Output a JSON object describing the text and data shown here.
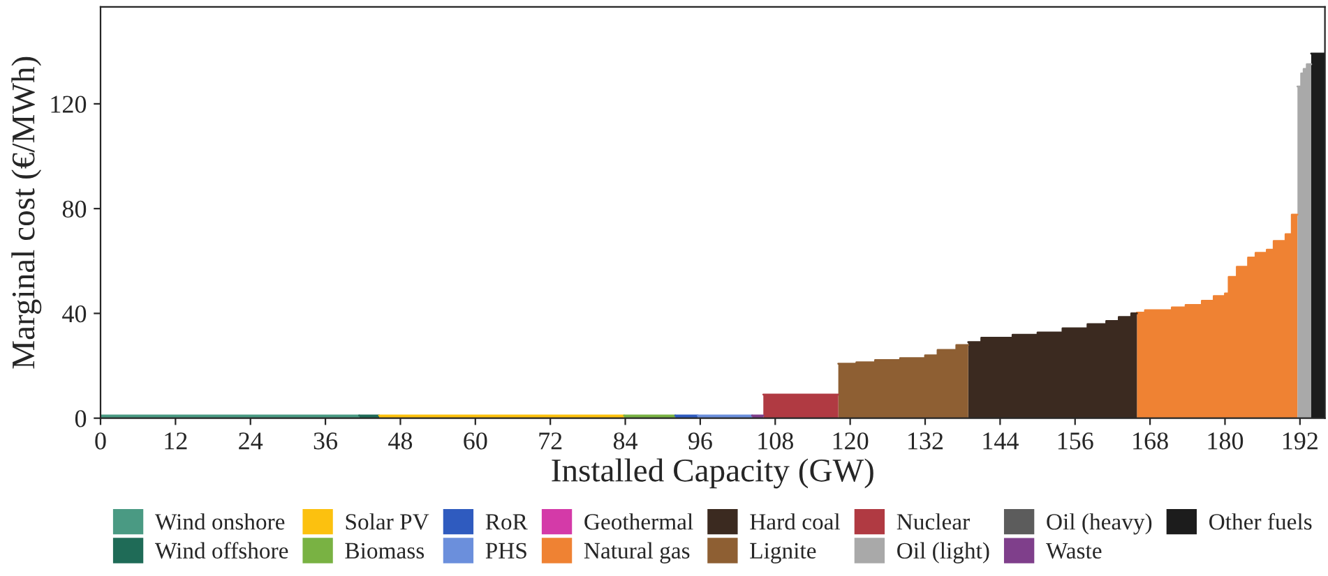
{
  "chart_data": {
    "type": "area",
    "xlabel": "Installed Capacity (GW)",
    "ylabel": "Marginal cost (€/MWh)",
    "xlim": [
      0,
      196
    ],
    "ylim": [
      0,
      157
    ],
    "xticks": [
      0,
      12,
      24,
      36,
      48,
      60,
      72,
      84,
      96,
      108,
      120,
      132,
      144,
      156,
      168,
      180,
      192
    ],
    "yticks": [
      0,
      40,
      80,
      120
    ],
    "grid": false,
    "legend": "bottom",
    "series": [
      {
        "name": "Wind onshore",
        "color": "#4a9a83",
        "x": [
          0,
          41.4
        ],
        "values": [
          1,
          1
        ]
      },
      {
        "name": "Wind offshore",
        "color": "#1f6b57",
        "x": [
          41.4,
          44.6
        ],
        "values": [
          1,
          1
        ]
      },
      {
        "name": "Solar PV",
        "color": "#fcc10f",
        "x": [
          44.6,
          83.8
        ],
        "values": [
          1,
          1
        ]
      },
      {
        "name": "Biomass",
        "color": "#79b243",
        "x": [
          83.8,
          92.0
        ],
        "values": [
          1,
          1
        ]
      },
      {
        "name": "RoR",
        "color": "#2f5bbf",
        "x": [
          92.0,
          95.6
        ],
        "values": [
          1,
          1
        ]
      },
      {
        "name": "PHS",
        "color": "#6b8fdc",
        "x": [
          95.6,
          104.3
        ],
        "values": [
          1,
          1
        ]
      },
      {
        "name": "Geothermal",
        "color": "#d43aa8"
      },
      {
        "name": "Natural gas",
        "color": "#ef8233",
        "x": [
          165.9,
          167.2,
          167.2,
          171.5,
          171.5,
          173.7,
          173.7,
          176.3,
          176.3,
          178.2,
          178.2,
          180.0,
          180.0,
          180.6,
          180.6,
          181.9,
          181.9,
          183.7,
          183.7,
          184.9,
          184.9,
          186.7,
          186.7,
          187.8,
          187.8,
          189.7,
          189.7,
          190.7,
          190.7,
          191.6
        ],
        "values": [
          40.3,
          40.3,
          41.2,
          41.2,
          42.3,
          42.3,
          43.2,
          43.2,
          44.8,
          44.8,
          46.6,
          46.6,
          47.6,
          47.6,
          53.9,
          53.9,
          57.8,
          57.8,
          61.3,
          61.3,
          63.1,
          63.1,
          64.3,
          64.3,
          67.6,
          67.6,
          70.2,
          70.2,
          77.7,
          77.7
        ]
      },
      {
        "name": "Hard coal",
        "color": "#3b2a20",
        "x": [
          138.9,
          141,
          141,
          146,
          146,
          150,
          150,
          154,
          154,
          158,
          158,
          161,
          161,
          163,
          163,
          165,
          165,
          165.9
        ],
        "values": [
          29,
          29,
          30.7,
          30.7,
          31.8,
          31.8,
          32.7,
          32.7,
          34.3,
          34.3,
          35.9,
          35.9,
          37.1,
          37.1,
          38.6,
          38.6,
          40,
          40
        ]
      },
      {
        "name": "Lignite",
        "color": "#8e5f33",
        "x": [
          118.1,
          121,
          121,
          124,
          124,
          128,
          128,
          132,
          132,
          134,
          134,
          137,
          137,
          138.9
        ],
        "values": [
          20.8,
          20.8,
          21.3,
          21.3,
          22.2,
          22.2,
          22.9,
          22.9,
          24,
          24,
          26,
          26,
          27.9,
          27.9
        ]
      },
      {
        "name": "Nuclear",
        "color": "#b03a42",
        "x": [
          106.1,
          118.1
        ],
        "values": [
          9,
          9
        ]
      },
      {
        "name": "Oil (light)",
        "color": "#a9a9a9",
        "x": [
          191.6,
          192.2,
          192.2,
          192.6,
          192.6,
          193.1,
          193.1,
          193.8
        ],
        "values": [
          126.6,
          126.6,
          131.6,
          131.6,
          133.3,
          133.3,
          135.1,
          135.1
        ]
      },
      {
        "name": "Oil (heavy)",
        "color": "#5c5c5c"
      },
      {
        "name": "Waste",
        "color": "#7f3f8b",
        "x": [
          104.3,
          106.1
        ],
        "values": [
          1,
          1
        ]
      },
      {
        "name": "Other fuels",
        "color": "#1c1c1c",
        "x": [
          193.8,
          196.0
        ],
        "values": [
          139.2,
          139.2
        ]
      }
    ]
  }
}
